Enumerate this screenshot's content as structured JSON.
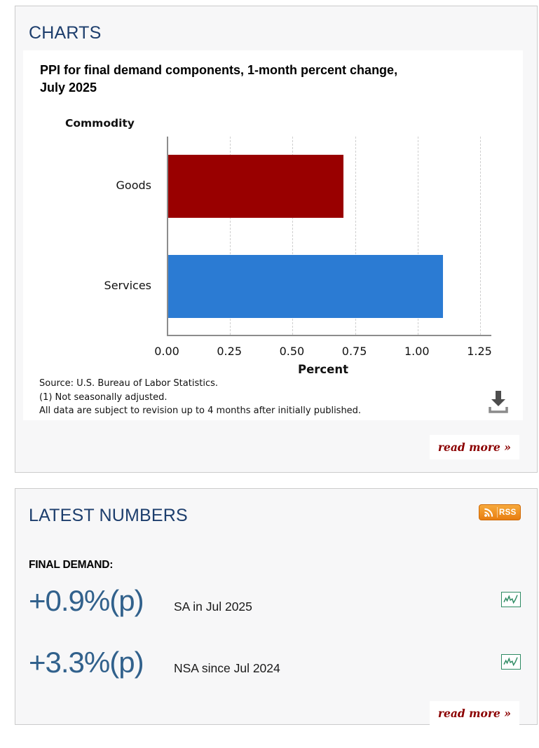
{
  "charts_panel": {
    "heading": "CHARTS",
    "chart_title_line1": "PPI for final demand components, 1-month percent change,",
    "chart_title_line2": "July 2025",
    "footnotes": [
      "Source: U.S. Bureau of Labor Statistics.",
      "(1) Not seasonally adjusted.",
      "All data are subject to revision up to 4 months after initially published."
    ],
    "download_icon": "download-icon",
    "read_more_label": "read more »"
  },
  "chart_data": {
    "type": "bar",
    "orientation": "horizontal",
    "title": "PPI for final demand components, 1-month percent change, July 2025",
    "ylabel": "Commodity",
    "xlabel": "Percent",
    "categories": [
      "Goods",
      "Services"
    ],
    "values": [
      0.7,
      1.1
    ],
    "bar_colors": [
      "#990000",
      "#2b7bd3"
    ],
    "xlim": [
      0,
      1.25
    ],
    "xticks": [
      0,
      0.25,
      0.5,
      0.75,
      1,
      1.25
    ],
    "xtick_labels": [
      "0.00",
      "0.25",
      "0.50",
      "0.75",
      "1.00",
      "1.25"
    ],
    "grid": "vertical-dashed",
    "legend": "none"
  },
  "latest_numbers_panel": {
    "heading": "LATEST NUMBERS",
    "rss_badge_label": "RSS",
    "rss_icon": "rss-icon",
    "group_heading": "FINAL DEMAND:",
    "stats": [
      {
        "value": "+0.9%(p)",
        "label": "SA in Jul 2025",
        "icon": "sparkline-chart-icon"
      },
      {
        "value": "+3.3%(p)",
        "label": "NSA since Jul 2024",
        "icon": "sparkline-chart-icon"
      }
    ],
    "read_more_label": "read more »"
  },
  "colors": {
    "heading_blue": "#1d3e6d",
    "stat_blue": "#31618c",
    "read_more_red": "#8b0000",
    "goods_bar": "#990000",
    "services_bar": "#2b7bd3",
    "rss_orange": "#e87e10",
    "sparkline_green": "#2e8b63",
    "panel_bg": "#f7f7f8",
    "panel_border": "#cbcbcb",
    "axis_gray": "#8c8c8c"
  }
}
